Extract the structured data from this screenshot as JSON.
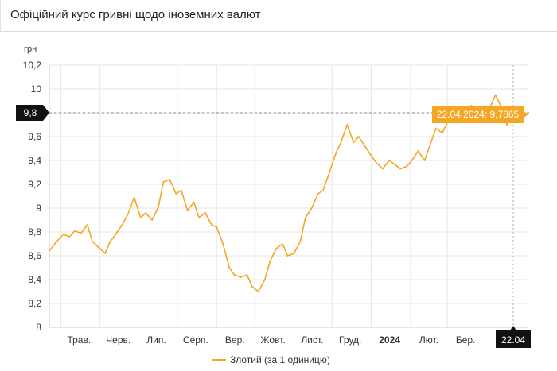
{
  "page": {
    "title": "Офіційний курс гривні щодо іноземних валют"
  },
  "chart_data": {
    "type": "line",
    "ylabel": "грн",
    "ylim": [
      8,
      10.2
    ],
    "y_ticks": [
      "8",
      "8,2",
      "8,4",
      "8,6",
      "8,8",
      "9",
      "9,2",
      "9,4",
      "9,6",
      "9,8",
      "10",
      "10,2"
    ],
    "y_tick_values": [
      8,
      8.2,
      8.4,
      8.6,
      8.8,
      9,
      9.2,
      9.4,
      9.6,
      9.8,
      10,
      10.2
    ],
    "x_range": [
      "2023-04-22",
      "2024-04-22"
    ],
    "x_ticks": [
      {
        "label": "Трав.",
        "date": "2023-05-01"
      },
      {
        "label": "Черв.",
        "date": "2023-06-01"
      },
      {
        "label": "Лип.",
        "date": "2023-07-01"
      },
      {
        "label": "Серп.",
        "date": "2023-08-01"
      },
      {
        "label": "Вер.",
        "date": "2023-09-01"
      },
      {
        "label": "Жовт.",
        "date": "2023-10-01"
      },
      {
        "label": "Лист.",
        "date": "2023-11-01"
      },
      {
        "label": "Груд.",
        "date": "2023-12-01"
      },
      {
        "label": "2024",
        "date": "2024-01-01",
        "bold": true
      },
      {
        "label": "Лют.",
        "date": "2024-02-01"
      },
      {
        "label": "Бер.",
        "date": "2024-03-01"
      }
    ],
    "crosshair": {
      "y_label": "9,8",
      "y_value": 9.8,
      "x_label": "22.04",
      "date": "2024-04-22"
    },
    "tooltip": {
      "text": "22.04.2024: 9,7865",
      "value": 9.7865
    },
    "series": [
      {
        "name": "Злотий (за 1 одиницю)",
        "color": "#f5a623",
        "points": [
          [
            "2023-04-22",
            8.64
          ],
          [
            "2023-04-27",
            8.71
          ],
          [
            "2023-05-03",
            8.78
          ],
          [
            "2023-05-08",
            8.76
          ],
          [
            "2023-05-12",
            8.81
          ],
          [
            "2023-05-17",
            8.79
          ],
          [
            "2023-05-22",
            8.86
          ],
          [
            "2023-05-26",
            8.72
          ],
          [
            "2023-05-31",
            8.67
          ],
          [
            "2023-06-05",
            8.62
          ],
          [
            "2023-06-09",
            8.72
          ],
          [
            "2023-06-14",
            8.79
          ],
          [
            "2023-06-19",
            8.87
          ],
          [
            "2023-06-23",
            8.95
          ],
          [
            "2023-06-28",
            9.09
          ],
          [
            "2023-07-03",
            8.92
          ],
          [
            "2023-07-07",
            8.96
          ],
          [
            "2023-07-12",
            8.9
          ],
          [
            "2023-07-17",
            9.01
          ],
          [
            "2023-07-21",
            9.22
          ],
          [
            "2023-07-26",
            9.24
          ],
          [
            "2023-07-31",
            9.12
          ],
          [
            "2023-08-04",
            9.15
          ],
          [
            "2023-08-09",
            8.98
          ],
          [
            "2023-08-14",
            9.05
          ],
          [
            "2023-08-18",
            8.92
          ],
          [
            "2023-08-23",
            8.96
          ],
          [
            "2023-08-28",
            8.86
          ],
          [
            "2023-09-01",
            8.84
          ],
          [
            "2023-09-06",
            8.7
          ],
          [
            "2023-09-11",
            8.5
          ],
          [
            "2023-09-15",
            8.44
          ],
          [
            "2023-09-20",
            8.42
          ],
          [
            "2023-09-25",
            8.44
          ],
          [
            "2023-09-29",
            8.34
          ],
          [
            "2023-10-04",
            8.3
          ],
          [
            "2023-10-09",
            8.4
          ],
          [
            "2023-10-13",
            8.55
          ],
          [
            "2023-10-18",
            8.66
          ],
          [
            "2023-10-23",
            8.7
          ],
          [
            "2023-10-27",
            8.6
          ],
          [
            "2023-11-01",
            8.62
          ],
          [
            "2023-11-06",
            8.72
          ],
          [
            "2023-11-10",
            8.92
          ],
          [
            "2023-11-15",
            9.0
          ],
          [
            "2023-11-20",
            9.12
          ],
          [
            "2023-11-24",
            9.15
          ],
          [
            "2023-11-29",
            9.3
          ],
          [
            "2023-12-04",
            9.46
          ],
          [
            "2023-12-08",
            9.55
          ],
          [
            "2023-12-13",
            9.7
          ],
          [
            "2023-12-18",
            9.55
          ],
          [
            "2023-12-22",
            9.6
          ],
          [
            "2023-12-27",
            9.52
          ],
          [
            "2024-01-01",
            9.44
          ],
          [
            "2024-01-05",
            9.38
          ],
          [
            "2024-01-10",
            9.33
          ],
          [
            "2024-01-15",
            9.4
          ],
          [
            "2024-01-19",
            9.37
          ],
          [
            "2024-01-24",
            9.33
          ],
          [
            "2024-01-29",
            9.35
          ],
          [
            "2024-02-02",
            9.4
          ],
          [
            "2024-02-07",
            9.48
          ],
          [
            "2024-02-12",
            9.4
          ],
          [
            "2024-02-16",
            9.52
          ],
          [
            "2024-02-21",
            9.67
          ],
          [
            "2024-02-26",
            9.63
          ],
          [
            "2024-03-01",
            9.72
          ],
          [
            "2024-03-06",
            9.82
          ],
          [
            "2024-03-11",
            9.8
          ],
          [
            "2024-03-15",
            9.84
          ],
          [
            "2024-03-20",
            9.86
          ],
          [
            "2024-03-25",
            9.82
          ],
          [
            "2024-03-29",
            9.8
          ],
          [
            "2024-04-03",
            9.83
          ],
          [
            "2024-04-08",
            9.95
          ],
          [
            "2024-04-12",
            9.86
          ],
          [
            "2024-04-17",
            9.7
          ],
          [
            "2024-04-22",
            9.7865
          ]
        ]
      }
    ],
    "legend": {
      "label": "Злотий (за 1 одиницю)",
      "placement": "bottom-center"
    },
    "grid": true,
    "colors": {
      "line": "#f5a623",
      "tooltip_bg": "#f5a623",
      "crosshair_label_bg": "#111111",
      "grid": "#e6e6e6"
    }
  }
}
